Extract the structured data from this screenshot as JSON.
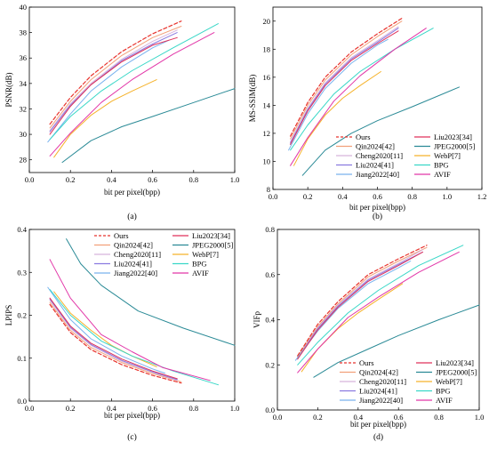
{
  "figure": {
    "legend": [
      {
        "name": "Ours",
        "color": "#e8332d",
        "dash": true
      },
      {
        "name": "Liu2023[34]",
        "color": "#e0305a",
        "dash": false
      },
      {
        "name": "Qin2024[42]",
        "color": "#f2a07a",
        "dash": false
      },
      {
        "name": "JPEG2000[5]",
        "color": "#2a8a96",
        "dash": false
      },
      {
        "name": "Cheng2020[11]",
        "color": "#d8b4dc",
        "dash": false
      },
      {
        "name": "WebP[7]",
        "color": "#f5b22a",
        "dash": false
      },
      {
        "name": "Liu2024[41]",
        "color": "#8a7ae0",
        "dash": false
      },
      {
        "name": "BPG",
        "color": "#39d7c7",
        "dash": false
      },
      {
        "name": "Jiang2022[40]",
        "color": "#79b2ee",
        "dash": false
      },
      {
        "name": "AVIF",
        "color": "#e236a8",
        "dash": false
      }
    ]
  },
  "chart_data": [
    {
      "type": "line",
      "caption": "(a)",
      "xlabel": "bit per pixel(bpp)",
      "ylabel": "PSNR(dB)",
      "xlim": [
        0,
        1.0
      ],
      "ylim": [
        27,
        40
      ],
      "xticks": [
        "0.0",
        "0.2",
        "0.4",
        "0.6",
        "0.8",
        "1.0"
      ],
      "yticks": [
        "28",
        "30",
        "32",
        "34",
        "36",
        "38",
        "40"
      ],
      "series": [
        {
          "name": "Ours",
          "x": [
            0.1,
            0.2,
            0.3,
            0.45,
            0.6,
            0.74
          ],
          "y": [
            30.8,
            32.9,
            34.6,
            36.5,
            37.9,
            38.9
          ]
        },
        {
          "name": "Qin2024[42]",
          "x": [
            0.1,
            0.2,
            0.3,
            0.45,
            0.6,
            0.74
          ],
          "y": [
            30.5,
            32.6,
            34.3,
            36.2,
            37.6,
            38.5
          ]
        },
        {
          "name": "Cheng2020[11]",
          "x": [
            0.1,
            0.2,
            0.3,
            0.45,
            0.6,
            0.72
          ],
          "y": [
            30.3,
            32.4,
            34.0,
            35.9,
            37.3,
            38.2
          ]
        },
        {
          "name": "Liu2024[41]",
          "x": [
            0.1,
            0.2,
            0.3,
            0.45,
            0.6,
            0.72
          ],
          "y": [
            30.2,
            32.3,
            33.9,
            35.8,
            37.1,
            38.0
          ]
        },
        {
          "name": "Jiang2022[40]",
          "x": [
            0.09,
            0.2,
            0.3,
            0.45,
            0.6,
            0.68
          ],
          "y": [
            29.4,
            31.6,
            33.4,
            35.3,
            36.8,
            37.4
          ]
        },
        {
          "name": "Liu2023[34]",
          "x": [
            0.1,
            0.2,
            0.3,
            0.45,
            0.6,
            0.72
          ],
          "y": [
            30.0,
            32.2,
            33.9,
            35.7,
            37.0,
            37.6
          ]
        },
        {
          "name": "JPEG2000[5]",
          "x": [
            0.16,
            0.3,
            0.45,
            0.6,
            0.8,
            1.0
          ],
          "y": [
            27.8,
            29.5,
            30.6,
            31.4,
            32.5,
            33.6
          ]
        },
        {
          "name": "WebP[7]",
          "x": [
            0.12,
            0.2,
            0.3,
            0.4,
            0.5,
            0.62
          ],
          "y": [
            28.2,
            30.0,
            31.5,
            32.6,
            33.4,
            34.3
          ]
        },
        {
          "name": "BPG",
          "x": [
            0.1,
            0.2,
            0.35,
            0.5,
            0.7,
            0.92
          ],
          "y": [
            29.6,
            31.4,
            33.4,
            35.0,
            36.8,
            38.7
          ]
        },
        {
          "name": "AVIF",
          "x": [
            0.1,
            0.2,
            0.35,
            0.5,
            0.7,
            0.9
          ],
          "y": [
            28.3,
            30.1,
            32.5,
            34.3,
            36.3,
            38.0
          ]
        }
      ]
    },
    {
      "type": "line",
      "caption": "(b)",
      "xlabel": "bit per pixel(bpp)",
      "ylabel": "MS-SSIM(dB)",
      "xlim": [
        0,
        1.2
      ],
      "ylim": [
        8,
        21
      ],
      "xticks": [
        "0.0",
        "0.2",
        "0.4",
        "0.6",
        "0.8",
        "1.0",
        "1.2"
      ],
      "yticks": [
        "8",
        "10",
        "12",
        "14",
        "16",
        "18",
        "20"
      ],
      "series": [
        {
          "name": "Ours",
          "x": [
            0.1,
            0.2,
            0.3,
            0.45,
            0.6,
            0.74
          ],
          "y": [
            11.8,
            14.2,
            16.0,
            17.8,
            19.1,
            20.2
          ]
        },
        {
          "name": "Qin2024[42]",
          "x": [
            0.1,
            0.2,
            0.3,
            0.45,
            0.6,
            0.74
          ],
          "y": [
            11.6,
            14.0,
            15.8,
            17.6,
            18.9,
            20.0
          ]
        },
        {
          "name": "Cheng2020[11]",
          "x": [
            0.1,
            0.2,
            0.3,
            0.45,
            0.6,
            0.72
          ],
          "y": [
            11.4,
            13.8,
            15.6,
            17.4,
            18.6,
            19.6
          ]
        },
        {
          "name": "Liu2024[41]",
          "x": [
            0.1,
            0.2,
            0.3,
            0.45,
            0.6,
            0.72
          ],
          "y": [
            11.3,
            13.7,
            15.5,
            17.3,
            18.5,
            19.5
          ]
        },
        {
          "name": "Jiang2022[40]",
          "x": [
            0.09,
            0.2,
            0.3,
            0.45,
            0.6,
            0.66
          ],
          "y": [
            10.8,
            13.4,
            15.2,
            17.0,
            18.3,
            18.7
          ]
        },
        {
          "name": "Liu2023[34]",
          "x": [
            0.1,
            0.2,
            0.3,
            0.45,
            0.6,
            0.72
          ],
          "y": [
            11.2,
            13.6,
            15.4,
            17.2,
            18.4,
            19.3
          ]
        },
        {
          "name": "JPEG2000[5]",
          "x": [
            0.17,
            0.3,
            0.45,
            0.6,
            0.8,
            1.07
          ],
          "y": [
            9.0,
            10.8,
            12.0,
            12.9,
            13.9,
            15.3
          ]
        },
        {
          "name": "WebP[7]",
          "x": [
            0.12,
            0.2,
            0.3,
            0.4,
            0.5,
            0.62
          ],
          "y": [
            9.7,
            11.6,
            13.3,
            14.5,
            15.4,
            16.4
          ]
        },
        {
          "name": "BPG",
          "x": [
            0.1,
            0.2,
            0.35,
            0.5,
            0.7,
            0.92
          ],
          "y": [
            10.8,
            12.6,
            14.8,
            16.4,
            18.0,
            19.5
          ]
        },
        {
          "name": "AVIF",
          "x": [
            0.1,
            0.2,
            0.35,
            0.5,
            0.7,
            0.88
          ],
          "y": [
            9.7,
            11.7,
            14.3,
            16.1,
            18.0,
            19.5
          ]
        }
      ]
    },
    {
      "type": "line",
      "caption": "(c)",
      "xlabel": "bit per pixel(bpp)",
      "ylabel": "LPIPS",
      "xlim": [
        0,
        1.0
      ],
      "ylim": [
        0.0,
        0.4
      ],
      "xticks": [
        "0.0",
        "0.2",
        "0.4",
        "0.6",
        "0.8",
        "1.0"
      ],
      "yticks": [
        "0.0",
        "0.1",
        "0.2",
        "0.3",
        "0.4"
      ],
      "series": [
        {
          "name": "Ours",
          "x": [
            0.1,
            0.2,
            0.3,
            0.45,
            0.6,
            0.74
          ],
          "y": [
            0.225,
            0.16,
            0.12,
            0.085,
            0.06,
            0.042
          ]
        },
        {
          "name": "Qin2024[42]",
          "x": [
            0.1,
            0.2,
            0.3,
            0.45,
            0.6,
            0.74
          ],
          "y": [
            0.23,
            0.165,
            0.125,
            0.09,
            0.064,
            0.045
          ]
        },
        {
          "name": "Cheng2020[11]",
          "x": [
            0.1,
            0.2,
            0.3,
            0.45,
            0.6,
            0.72
          ],
          "y": [
            0.235,
            0.17,
            0.13,
            0.093,
            0.067,
            0.048
          ]
        },
        {
          "name": "Liu2024[41]",
          "x": [
            0.1,
            0.2,
            0.3,
            0.45,
            0.6,
            0.72
          ],
          "y": [
            0.238,
            0.172,
            0.132,
            0.095,
            0.068,
            0.05
          ]
        },
        {
          "name": "Jiang2022[40]",
          "x": [
            0.09,
            0.2,
            0.3,
            0.45,
            0.6,
            0.66
          ],
          "y": [
            0.265,
            0.19,
            0.145,
            0.105,
            0.075,
            0.065
          ]
        },
        {
          "name": "Liu2023[34]",
          "x": [
            0.1,
            0.2,
            0.3,
            0.45,
            0.6,
            0.72
          ],
          "y": [
            0.24,
            0.175,
            0.135,
            0.098,
            0.07,
            0.052
          ]
        },
        {
          "name": "JPEG2000[5]",
          "x": [
            0.18,
            0.25,
            0.35,
            0.53,
            0.75,
            1.0
          ],
          "y": [
            0.378,
            0.32,
            0.27,
            0.21,
            0.17,
            0.13
          ]
        },
        {
          "name": "WebP[7]",
          "x": [
            0.12,
            0.2,
            0.3,
            0.4,
            0.5,
            0.62
          ],
          "y": [
            0.255,
            0.205,
            0.165,
            0.13,
            0.105,
            0.08
          ]
        },
        {
          "name": "BPG",
          "x": [
            0.1,
            0.2,
            0.35,
            0.5,
            0.7,
            0.92
          ],
          "y": [
            0.26,
            0.2,
            0.14,
            0.105,
            0.07,
            0.038
          ]
        },
        {
          "name": "AVIF",
          "x": [
            0.1,
            0.2,
            0.35,
            0.5,
            0.65,
            0.88
          ],
          "y": [
            0.33,
            0.24,
            0.155,
            0.115,
            0.078,
            0.048
          ]
        }
      ]
    },
    {
      "type": "line",
      "caption": "(d)",
      "xlabel": "bit per pixel(bpp)",
      "ylabel": "VIFp",
      "xlim": [
        0,
        1.0
      ],
      "ylim": [
        0.0,
        0.8
      ],
      "xticks": [
        "0.0",
        "0.2",
        "0.4",
        "0.6",
        "0.8",
        "1.0"
      ],
      "yticks": [
        "0.0",
        "0.2",
        "0.4",
        "0.6",
        "0.8"
      ],
      "series": [
        {
          "name": "Ours",
          "x": [
            0.1,
            0.2,
            0.3,
            0.45,
            0.6,
            0.74
          ],
          "y": [
            0.24,
            0.38,
            0.48,
            0.6,
            0.67,
            0.73
          ]
        },
        {
          "name": "Qin2024[42]",
          "x": [
            0.1,
            0.2,
            0.3,
            0.45,
            0.6,
            0.74
          ],
          "y": [
            0.235,
            0.37,
            0.47,
            0.59,
            0.66,
            0.72
          ]
        },
        {
          "name": "Cheng2020[11]",
          "x": [
            0.1,
            0.2,
            0.3,
            0.45,
            0.6,
            0.72
          ],
          "y": [
            0.23,
            0.365,
            0.465,
            0.58,
            0.65,
            0.71
          ]
        },
        {
          "name": "Liu2024[41]",
          "x": [
            0.1,
            0.2,
            0.3,
            0.45,
            0.6,
            0.72
          ],
          "y": [
            0.23,
            0.36,
            0.46,
            0.575,
            0.645,
            0.7
          ]
        },
        {
          "name": "Jiang2022[40]",
          "x": [
            0.09,
            0.2,
            0.3,
            0.45,
            0.6,
            0.66
          ],
          "y": [
            0.22,
            0.35,
            0.45,
            0.56,
            0.63,
            0.66
          ]
        },
        {
          "name": "Liu2023[34]",
          "x": [
            0.1,
            0.2,
            0.3,
            0.45,
            0.6,
            0.72
          ],
          "y": [
            0.225,
            0.355,
            0.455,
            0.57,
            0.64,
            0.7
          ]
        },
        {
          "name": "JPEG2000[5]",
          "x": [
            0.18,
            0.3,
            0.45,
            0.6,
            0.8,
            1.0
          ],
          "y": [
            0.145,
            0.21,
            0.27,
            0.33,
            0.4,
            0.465
          ]
        },
        {
          "name": "WebP[7]",
          "x": [
            0.12,
            0.2,
            0.3,
            0.4,
            0.5,
            0.62
          ],
          "y": [
            0.17,
            0.27,
            0.36,
            0.43,
            0.49,
            0.56
          ]
        },
        {
          "name": "BPG",
          "x": [
            0.1,
            0.2,
            0.35,
            0.5,
            0.7,
            0.92
          ],
          "y": [
            0.2,
            0.3,
            0.43,
            0.53,
            0.64,
            0.73
          ]
        },
        {
          "name": "AVIF",
          "x": [
            0.1,
            0.2,
            0.35,
            0.5,
            0.7,
            0.9
          ],
          "y": [
            0.165,
            0.27,
            0.41,
            0.5,
            0.61,
            0.7
          ]
        }
      ]
    }
  ]
}
